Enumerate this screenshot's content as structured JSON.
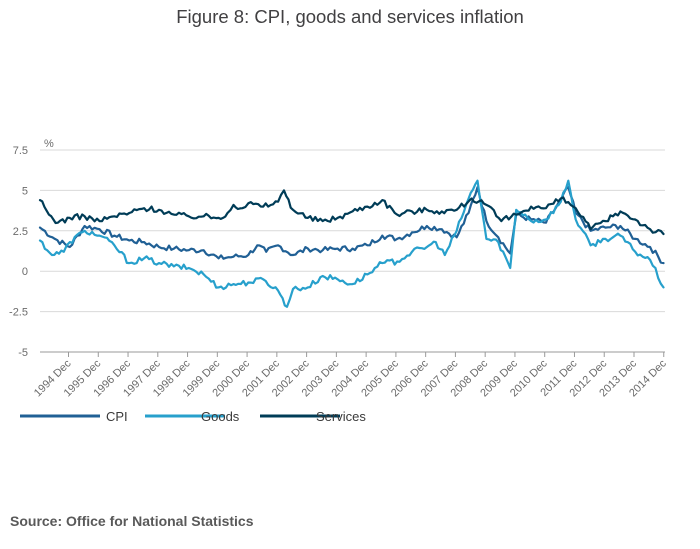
{
  "title": "Figure 8: CPI, goods and services inflation",
  "source": "Source: Office for National Statistics",
  "chart_data": {
    "type": "line",
    "title": "Figure 8: CPI, goods and services inflation",
    "ylabel": "%",
    "xlabel": "",
    "ylim": [
      -5,
      7.5
    ],
    "y_ticks": [
      7.5,
      5,
      2.5,
      0,
      -2.5,
      -5
    ],
    "y_tick_labels": [
      "7.5",
      "5",
      "2.5",
      "0",
      "-2.5",
      "-5"
    ],
    "grid": true,
    "legend_position": "bottom-left",
    "x_start": 1994.0,
    "x_end": 2015.0,
    "x_ticks": [
      1994.958,
      1995.958,
      1996.958,
      1997.958,
      1998.958,
      1999.958,
      2000.958,
      2001.958,
      2002.958,
      2003.958,
      2004.958,
      2005.958,
      2006.958,
      2007.958,
      2008.958,
      2009.958,
      2010.958,
      2011.958,
      2012.958,
      2013.958,
      2014.958
    ],
    "x_tick_labels": [
      "1994 Dec",
      "1995 Dec",
      "1996 Dec",
      "1997 Dec",
      "1998 Dec",
      "1999 Dec",
      "2000 Dec",
      "2001 Dec",
      "2002 Dec",
      "2003 Dec",
      "2004 Dec",
      "2005 Dec",
      "2006 Dec",
      "2007 Dec",
      "2008 Dec",
      "2009 Dec",
      "2010 Dec",
      "2011 Dec",
      "2012 Dec",
      "2013 Dec",
      "2014 Dec"
    ],
    "series": [
      {
        "name": "CPI",
        "color": "#206095",
        "x": [
          1994.0,
          1994.5,
          1995.0,
          1995.5,
          1996.0,
          1996.5,
          1997.0,
          1997.5,
          1998.0,
          1998.5,
          1999.0,
          1999.5,
          2000.0,
          2000.5,
          2001.0,
          2001.3,
          2001.6,
          2002.0,
          2002.5,
          2003.0,
          2003.5,
          2004.0,
          2004.5,
          2005.0,
          2005.5,
          2006.0,
          2006.5,
          2007.0,
          2007.5,
          2008.0,
          2008.4,
          2008.7,
          2009.0,
          2009.4,
          2009.8,
          2010.0,
          2010.5,
          2011.0,
          2011.5,
          2011.75,
          2012.0,
          2012.5,
          2013.0,
          2013.5,
          2014.0,
          2014.5,
          2014.95
        ],
        "values": [
          2.7,
          2.0,
          1.5,
          2.8,
          2.6,
          2.2,
          1.9,
          1.8,
          1.5,
          1.4,
          1.3,
          1.3,
          0.8,
          0.9,
          1.0,
          1.6,
          1.2,
          1.6,
          1.0,
          1.4,
          1.3,
          1.4,
          1.4,
          1.6,
          2.2,
          2.0,
          2.4,
          2.8,
          2.6,
          2.1,
          3.6,
          5.2,
          3.1,
          2.1,
          1.1,
          3.5,
          3.2,
          3.0,
          4.4,
          5.2,
          3.6,
          2.5,
          2.7,
          2.8,
          2.0,
          1.5,
          0.5
        ]
      },
      {
        "name": "Goods",
        "color": "#27a0cc",
        "x": [
          1994.0,
          1994.4,
          1994.8,
          1995.0,
          1995.5,
          1996.0,
          1996.5,
          1997.0,
          1997.5,
          1998.0,
          1998.5,
          1999.0,
          1999.5,
          2000.0,
          2000.5,
          2001.0,
          2001.5,
          2002.0,
          2002.3,
          2002.5,
          2003.0,
          2003.5,
          2004.0,
          2004.5,
          2005.0,
          2005.5,
          2006.0,
          2006.5,
          2007.0,
          2007.3,
          2007.6,
          2008.0,
          2008.4,
          2008.7,
          2009.0,
          2009.4,
          2009.8,
          2010.0,
          2010.3,
          2010.5,
          2011.0,
          2011.5,
          2011.75,
          2012.0,
          2012.5,
          2013.0,
          2013.5,
          2014.0,
          2014.5,
          2014.95
        ],
        "values": [
          1.9,
          1.0,
          1.2,
          1.8,
          2.5,
          2.2,
          1.6,
          0.5,
          0.8,
          0.5,
          0.3,
          0.2,
          -0.2,
          -1.0,
          -0.8,
          -0.7,
          -0.5,
          -1.2,
          -2.2,
          -1.1,
          -1.0,
          -0.3,
          -0.5,
          -0.8,
          -0.2,
          0.5,
          0.6,
          1.2,
          1.5,
          1.8,
          1.0,
          2.5,
          4.5,
          5.6,
          2.0,
          1.8,
          0.2,
          3.8,
          3.5,
          3.1,
          3.2,
          4.3,
          5.6,
          3.2,
          1.6,
          2.0,
          2.2,
          1.2,
          0.7,
          -1.0
        ]
      },
      {
        "name": "Services",
        "color": "#003c57",
        "x": [
          1994.0,
          1994.3,
          1994.6,
          1995.0,
          1995.5,
          1996.0,
          1996.5,
          1997.0,
          1997.5,
          1998.0,
          1998.5,
          1999.0,
          1999.5,
          2000.0,
          2000.3,
          2000.5,
          2000.8,
          2001.0,
          2001.5,
          2002.0,
          2002.2,
          2002.5,
          2003.0,
          2003.5,
          2004.0,
          2004.5,
          2005.0,
          2005.5,
          2006.0,
          2006.5,
          2007.0,
          2007.5,
          2008.0,
          2008.5,
          2009.0,
          2009.5,
          2010.0,
          2010.5,
          2011.0,
          2011.5,
          2012.0,
          2012.5,
          2013.0,
          2013.5,
          2014.0,
          2014.5,
          2014.95
        ],
        "values": [
          4.4,
          3.5,
          3.0,
          3.3,
          3.4,
          3.1,
          3.4,
          3.6,
          3.9,
          3.8,
          3.5,
          3.4,
          3.4,
          3.3,
          3.6,
          4.1,
          3.9,
          4.2,
          4.0,
          4.3,
          5.0,
          3.8,
          3.3,
          3.1,
          3.3,
          3.7,
          4.0,
          4.4,
          3.5,
          3.7,
          3.8,
          3.7,
          3.8,
          4.5,
          4.1,
          3.1,
          3.5,
          4.0,
          3.9,
          4.5,
          3.9,
          2.6,
          3.1,
          3.7,
          3.2,
          2.6,
          2.3
        ]
      }
    ]
  }
}
